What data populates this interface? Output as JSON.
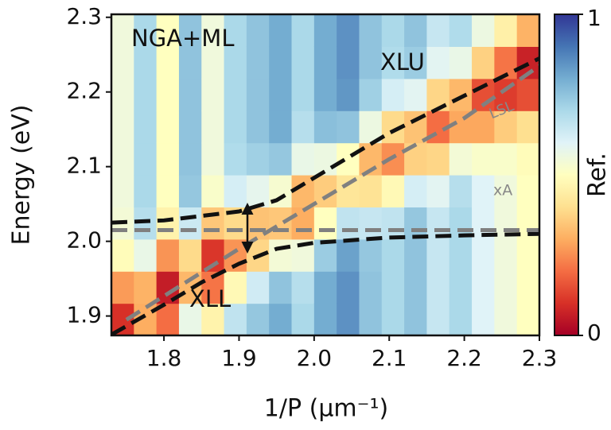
{
  "chart_data": {
    "type": "heatmap",
    "xlabel": "1/P (μm⁻¹)",
    "ylabel": "Energy (eV)",
    "colorbar_label": "Ref.",
    "x_edges": [
      1.73,
      1.76,
      1.79,
      1.82,
      1.85,
      1.88,
      1.91,
      1.94,
      1.97,
      2.0,
      2.03,
      2.06,
      2.09,
      2.12,
      2.15,
      2.18,
      2.21,
      2.24,
      2.27,
      2.3
    ],
    "y_edges": [
      1.874,
      1.917,
      1.96,
      2.003,
      2.046,
      2.089,
      2.132,
      2.175,
      2.218,
      2.261,
      2.304
    ],
    "z": [
      [
        0.1,
        0.27,
        0.49,
        0.54,
        0.55,
        0.55,
        0.55,
        0.55,
        0.55,
        0.55
      ],
      [
        0.3,
        0.31,
        0.57,
        0.68,
        0.7,
        0.7,
        0.7,
        0.7,
        0.7,
        0.7
      ],
      [
        0.2,
        0.06,
        0.26,
        0.46,
        0.5,
        0.5,
        0.5,
        0.5,
        0.5,
        0.5
      ],
      [
        0.57,
        0.32,
        0.39,
        0.64,
        0.74,
        0.75,
        0.75,
        0.75,
        0.75,
        0.75
      ],
      [
        0.46,
        0.21,
        0.11,
        0.35,
        0.52,
        0.55,
        0.55,
        0.55,
        0.55,
        0.55
      ],
      [
        0.66,
        0.48,
        0.26,
        0.39,
        0.62,
        0.69,
        0.7,
        0.7,
        0.7,
        0.7
      ],
      [
        0.74,
        0.63,
        0.38,
        0.34,
        0.58,
        0.72,
        0.75,
        0.75,
        0.75,
        0.75
      ],
      [
        0.8,
        0.75,
        0.54,
        0.35,
        0.53,
        0.74,
        0.8,
        0.8,
        0.8,
        0.8
      ],
      [
        0.7,
        0.68,
        0.55,
        0.3,
        0.32,
        0.57,
        0.68,
        0.7,
        0.7,
        0.7
      ],
      [
        0.8,
        0.8,
        0.73,
        0.5,
        0.36,
        0.56,
        0.76,
        0.8,
        0.8,
        0.8
      ],
      [
        0.85,
        0.85,
        0.82,
        0.66,
        0.42,
        0.5,
        0.75,
        0.84,
        0.85,
        0.85
      ],
      [
        0.75,
        0.75,
        0.74,
        0.65,
        0.41,
        0.32,
        0.56,
        0.72,
        0.75,
        0.75
      ],
      [
        0.7,
        0.7,
        0.7,
        0.66,
        0.48,
        0.25,
        0.39,
        0.62,
        0.69,
        0.7
      ],
      [
        0.75,
        0.75,
        0.75,
        0.74,
        0.62,
        0.37,
        0.34,
        0.59,
        0.73,
        0.75
      ],
      [
        0.65,
        0.65,
        0.65,
        0.65,
        0.59,
        0.38,
        0.2,
        0.38,
        0.59,
        0.65
      ],
      [
        0.7,
        0.7,
        0.7,
        0.7,
        0.68,
        0.54,
        0.29,
        0.32,
        0.57,
        0.69
      ],
      [
        0.6,
        0.6,
        0.6,
        0.6,
        0.6,
        0.52,
        0.29,
        0.15,
        0.37,
        0.56
      ],
      [
        0.55,
        0.55,
        0.55,
        0.55,
        0.55,
        0.52,
        0.36,
        0.12,
        0.21,
        0.45
      ],
      [
        0.5,
        0.5,
        0.5,
        0.5,
        0.5,
        0.49,
        0.4,
        0.15,
        0.07,
        0.31
      ]
    ],
    "colormap": [
      "#a50026",
      "#d73027",
      "#f46d43",
      "#fdae61",
      "#fee090",
      "#ffffbf",
      "#e0f3f8",
      "#abd9e9",
      "#74add1",
      "#4575b4",
      "#313695"
    ],
    "zlim": [
      0,
      1
    ],
    "zticks": [
      0,
      1
    ],
    "xlim": [
      1.73,
      2.3
    ],
    "ylim": [
      1.874,
      2.304
    ],
    "xticks": [
      1.8,
      1.9,
      {
        "value": 2.0,
        "label": "2.0"
      },
      2.1,
      2.2,
      2.3
    ],
    "yticks": [
      1.9,
      {
        "value": 2.0,
        "label": "2.0"
      },
      2.1,
      2.2,
      2.3
    ],
    "lines": [
      {
        "color": "#111111",
        "x": [
          1.73,
          1.8,
          1.9,
          1.95,
          2.0,
          2.1,
          2.2,
          2.3
        ],
        "values": [
          2.025,
          2.028,
          2.04,
          2.055,
          2.085,
          2.145,
          2.195,
          2.245
        ]
      },
      {
        "color": "#111111",
        "x": [
          1.73,
          1.8,
          1.85,
          1.9,
          1.95,
          2.0,
          2.1,
          2.2,
          2.3
        ],
        "values": [
          1.875,
          1.915,
          1.945,
          1.97,
          1.99,
          1.998,
          2.005,
          2.008,
          2.01
        ]
      },
      {
        "color": "#808080",
        "x": [
          1.73,
          2.3
        ],
        "values": [
          2.015,
          2.015
        ]
      },
      {
        "color": "#808080",
        "x": [
          1.75,
          1.9,
          2.0,
          2.1,
          2.2,
          2.3
        ],
        "values": [
          1.895,
          1.99,
          2.05,
          2.11,
          2.165,
          2.235
        ]
      }
    ],
    "annotations": [
      "NGA+ML",
      "XLU",
      "XLL",
      "LSL",
      "xA"
    ]
  }
}
